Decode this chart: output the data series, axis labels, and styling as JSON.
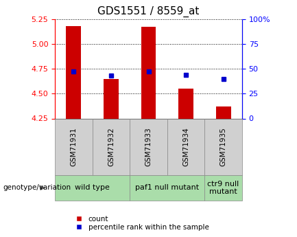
{
  "title": "GDS1551 / 8559_at",
  "samples": [
    "GSM71931",
    "GSM71932",
    "GSM71933",
    "GSM71934",
    "GSM71935"
  ],
  "count_values": [
    5.18,
    4.65,
    5.17,
    4.55,
    4.37
  ],
  "percentile_values": [
    47,
    43,
    47,
    44,
    40
  ],
  "baseline": 4.25,
  "ylim_left": [
    4.25,
    5.25
  ],
  "ylim_right": [
    0,
    100
  ],
  "yticks_left": [
    4.25,
    4.5,
    4.75,
    5.0,
    5.25
  ],
  "yticks_right": [
    0,
    25,
    50,
    75,
    100
  ],
  "bar_color": "#cc0000",
  "dot_color": "#0000cc",
  "bar_width": 0.4,
  "group_defs": [
    [
      0,
      2,
      "wild type"
    ],
    [
      2,
      4,
      "paf1 null mutant"
    ],
    [
      4,
      5,
      "ctr9 null\nmutant"
    ]
  ],
  "genotype_label": "genotype/variation",
  "legend_count_label": "count",
  "legend_percentile_label": "percentile rank within the sample",
  "title_fontsize": 11,
  "tick_fontsize": 8,
  "group_label_fontsize": 8,
  "sample_label_fontsize": 7.5,
  "genotype_fontsize": 7.5,
  "legend_fontsize": 7.5,
  "sample_box_color": "#d0d0d0",
  "group_box_color": "#aaddaa",
  "group_box_border_color": "#888888"
}
